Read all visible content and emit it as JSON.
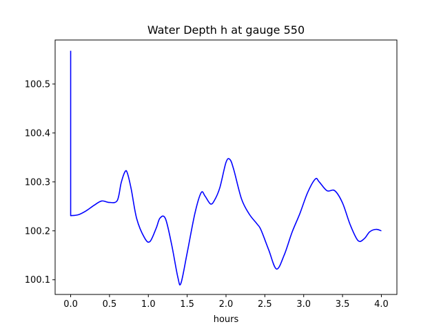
{
  "chart_data": {
    "type": "line",
    "title": "Water Depth h at gauge 550",
    "xlabel": "hours",
    "ylabel": "",
    "xlim": [
      -0.2,
      4.2
    ],
    "ylim": [
      100.07,
      100.59
    ],
    "xticks": [
      0.0,
      0.5,
      1.0,
      1.5,
      2.0,
      2.5,
      3.0,
      3.5,
      4.0
    ],
    "xtick_labels": [
      "0.0",
      "0.5",
      "1.0",
      "1.5",
      "2.0",
      "2.5",
      "3.0",
      "3.5",
      "4.0"
    ],
    "yticks": [
      100.1,
      100.2,
      100.3,
      100.4,
      100.5
    ],
    "ytick_labels": [
      "100.1",
      "100.2",
      "100.3",
      "100.4",
      "100.5"
    ],
    "grid": false,
    "series": [
      {
        "color": "#0000ff",
        "x": [
          0.0,
          0.0,
          0.1,
          0.2,
          0.3,
          0.4,
          0.5,
          0.6,
          0.65,
          0.7,
          0.73,
          0.78,
          0.85,
          0.95,
          1.02,
          1.1,
          1.15,
          1.22,
          1.3,
          1.38,
          1.42,
          1.5,
          1.6,
          1.68,
          1.73,
          1.8,
          1.85,
          1.92,
          2.0,
          2.05,
          2.1,
          2.2,
          2.3,
          2.4,
          2.45,
          2.55,
          2.65,
          2.75,
          2.85,
          2.95,
          3.05,
          3.15,
          3.2,
          3.3,
          3.4,
          3.5,
          3.6,
          3.7,
          3.78,
          3.85,
          3.93,
          4.0
        ],
        "y": [
          100.568,
          100.231,
          100.233,
          100.241,
          100.252,
          100.261,
          100.258,
          100.262,
          100.298,
          100.321,
          100.318,
          100.285,
          100.225,
          100.186,
          100.178,
          100.205,
          100.226,
          100.225,
          100.172,
          100.105,
          100.093,
          100.155,
          100.236,
          100.278,
          100.271,
          100.255,
          100.262,
          100.288,
          100.34,
          100.346,
          100.325,
          100.265,
          100.234,
          100.214,
          100.202,
          100.161,
          100.122,
          100.151,
          100.197,
          100.235,
          100.278,
          100.306,
          100.3,
          100.282,
          100.282,
          100.257,
          100.212,
          100.18,
          100.184,
          100.198,
          100.203,
          100.2
        ]
      }
    ]
  }
}
